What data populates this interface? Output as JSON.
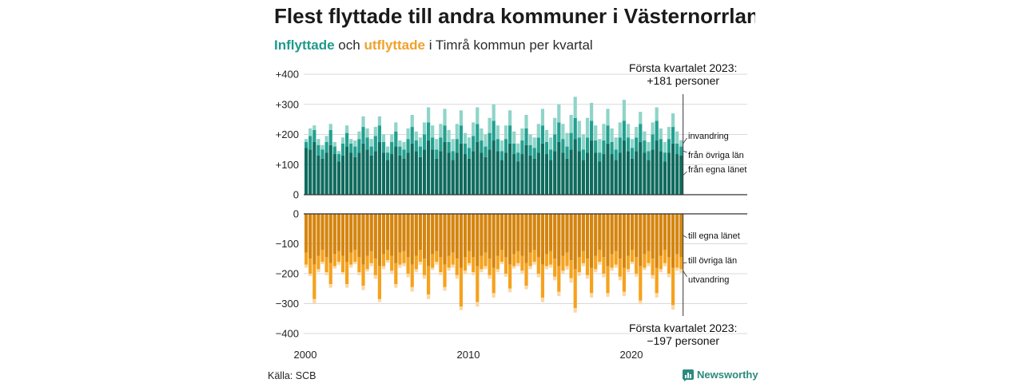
{
  "chart_data": {
    "type": "bar",
    "stacked": true,
    "title": "Flest flyttade till andra kommuner i Västernorrland",
    "subtitle": {
      "inflow_word": "Inflyttade",
      "connector": "och",
      "outflow_word": "utflyttade",
      "rest": "i Timrå kommun per kvartal"
    },
    "grid": true,
    "x": [
      2000,
      2000.25,
      2000.5,
      2000.75,
      2001,
      2001.25,
      2001.5,
      2001.75,
      2002,
      2002.25,
      2002.5,
      2002.75,
      2003,
      2003.25,
      2003.5,
      2003.75,
      2004,
      2004.25,
      2004.5,
      2004.75,
      2005,
      2005.25,
      2005.5,
      2005.75,
      2006,
      2006.25,
      2006.5,
      2006.75,
      2007,
      2007.25,
      2007.5,
      2007.75,
      2008,
      2008.25,
      2008.5,
      2008.75,
      2009,
      2009.25,
      2009.5,
      2009.75,
      2010,
      2010.25,
      2010.5,
      2010.75,
      2011,
      2011.25,
      2011.5,
      2011.75,
      2012,
      2012.25,
      2012.5,
      2012.75,
      2013,
      2013.25,
      2013.5,
      2013.75,
      2014,
      2014.25,
      2014.5,
      2014.75,
      2015,
      2015.25,
      2015.5,
      2015.75,
      2016,
      2016.25,
      2016.5,
      2016.75,
      2017,
      2017.25,
      2017.5,
      2017.75,
      2018,
      2018.25,
      2018.5,
      2018.75,
      2019,
      2019.25,
      2019.5,
      2019.75,
      2020,
      2020.25,
      2020.5,
      2020.75,
      2021,
      2021.25,
      2021.5,
      2021.75,
      2022,
      2022.25,
      2022.5,
      2022.75,
      2023
    ],
    "xticks": {
      "values": [
        2000,
        2010,
        2020
      ],
      "labels": [
        "2000",
        "2010",
        "2020"
      ]
    },
    "panels": [
      {
        "ylim": [
          0,
          400
        ],
        "yticks": {
          "values": [
            0,
            100,
            200,
            300,
            400
          ],
          "labels": [
            "0",
            "+100",
            "+200",
            "+300",
            "+400"
          ]
        },
        "series": [
          {
            "name": "från egna länet",
            "color": "#0f6b5e",
            "values": [
              155,
              150,
              175,
              130,
              120,
              140,
              165,
              135,
              110,
              130,
              160,
              140,
              125,
              140,
              170,
              150,
              130,
              145,
              175,
              140,
              115,
              135,
              160,
              130,
              120,
              140,
              170,
              145,
              125,
              150,
              180,
              150,
              120,
              145,
              175,
              140,
              115,
              140,
              170,
              135,
              120,
              145,
              175,
              140,
              125,
              150,
              180,
              145,
              115,
              140,
              170,
              135,
              110,
              135,
              165,
              130,
              120,
              140,
              170,
              135,
              115,
              145,
              175,
              140,
              120,
              150,
              185,
              145,
              115,
              140,
              180,
              140,
              110,
              135,
              170,
              135,
              115,
              140,
              180,
              145,
              120,
              145,
              175,
              140,
              115,
              150,
              180,
              145,
              110,
              140,
              170,
              135,
              130
            ]
          },
          {
            "name": "från övriga län",
            "color": "#23a090",
            "values": [
              20,
              45,
              40,
              35,
              30,
              35,
              50,
              25,
              25,
              40,
              45,
              30,
              35,
              45,
              55,
              40,
              30,
              50,
              55,
              35,
              25,
              40,
              50,
              30,
              30,
              45,
              55,
              35,
              35,
              50,
              60,
              40,
              30,
              45,
              55,
              35,
              30,
              45,
              60,
              35,
              35,
              50,
              60,
              40,
              35,
              55,
              65,
              40,
              30,
              45,
              60,
              35,
              30,
              45,
              55,
              35,
              35,
              50,
              60,
              40,
              35,
              55,
              65,
              45,
              40,
              55,
              70,
              45,
              35,
              50,
              65,
              40,
              30,
              45,
              60,
              40,
              35,
              50,
              65,
              45,
              35,
              45,
              60,
              40,
              30,
              50,
              65,
              40,
              30,
              45,
              55,
              35,
              30
            ]
          },
          {
            "name": "invandring",
            "color": "#8fd4c9",
            "values": [
              10,
              25,
              15,
              20,
              15,
              20,
              20,
              15,
              10,
              20,
              25,
              15,
              20,
              25,
              35,
              30,
              25,
              30,
              30,
              25,
              20,
              25,
              30,
              20,
              25,
              35,
              40,
              30,
              30,
              40,
              50,
              40,
              35,
              45,
              55,
              40,
              40,
              50,
              50,
              35,
              35,
              45,
              55,
              40,
              40,
              50,
              55,
              45,
              35,
              45,
              50,
              40,
              30,
              40,
              45,
              35,
              35,
              45,
              55,
              40,
              40,
              55,
              60,
              50,
              45,
              60,
              70,
              55,
              50,
              65,
              60,
              50,
              45,
              55,
              55,
              45,
              40,
              50,
              70,
              45,
              30,
              35,
              40,
              30,
              30,
              40,
              45,
              35,
              35,
              40,
              45,
              40,
              21
            ]
          }
        ],
        "annotation": {
          "x": 2023,
          "lines": [
            "Första kvartalet 2023:",
            "+181 personer"
          ]
        }
      },
      {
        "ylim": [
          -400,
          0
        ],
        "yticks": {
          "values": [
            0,
            -100,
            -200,
            -300,
            -400
          ],
          "labels": [
            "0",
            "−100",
            "−200",
            "−300",
            "−400"
          ]
        },
        "series": [
          {
            "name": "till egna länet",
            "color": "#d4850f",
            "values": [
              -130,
              -150,
              -170,
              -140,
              -120,
              -145,
              -165,
              -135,
              -125,
              -140,
              -160,
              -130,
              -120,
              -145,
              -170,
              -140,
              -125,
              -150,
              -175,
              -135,
              -120,
              -140,
              -165,
              -130,
              -125,
              -145,
              -170,
              -140,
              -120,
              -150,
              -175,
              -135,
              -125,
              -145,
              -170,
              -140,
              -130,
              -150,
              -180,
              -145,
              -125,
              -145,
              -175,
              -140,
              -130,
              -150,
              -180,
              -140,
              -120,
              -145,
              -170,
              -135,
              -125,
              -140,
              -165,
              -130,
              -120,
              -145,
              -170,
              -135,
              -125,
              -150,
              -175,
              -140,
              -130,
              -155,
              -185,
              -145,
              -125,
              -150,
              -180,
              -140,
              -120,
              -145,
              -175,
              -135,
              -125,
              -150,
              -180,
              -140,
              -120,
              -145,
              -175,
              -135,
              -125,
              -150,
              -180,
              -140,
              -120,
              -145,
              -180,
              -135,
              -145
            ]
          },
          {
            "name": "till övriga län",
            "color": "#f5a21d",
            "values": [
              -40,
              -50,
              -115,
              -45,
              -40,
              -50,
              -70,
              -40,
              -35,
              -55,
              -75,
              -40,
              -40,
              -50,
              -70,
              -45,
              -40,
              -55,
              -110,
              -40,
              -35,
              -50,
              -70,
              -40,
              -40,
              -55,
              -75,
              -45,
              -40,
              -55,
              -95,
              -45,
              -35,
              -50,
              -75,
              -40,
              -40,
              -55,
              -130,
              -45,
              -40,
              -50,
              -120,
              -45,
              -45,
              -55,
              -85,
              -45,
              -40,
              -55,
              -80,
              -40,
              -40,
              -50,
              -75,
              -45,
              -40,
              -55,
              -110,
              -40,
              -45,
              -60,
              -85,
              -50,
              -45,
              -60,
              -130,
              -50,
              -40,
              -55,
              -85,
              -45,
              -40,
              -55,
              -90,
              -45,
              -45,
              -60,
              -80,
              -45,
              -40,
              -55,
              -115,
              -45,
              -40,
              -55,
              -85,
              -45,
              -45,
              -55,
              -125,
              -45,
              -40
            ]
          },
          {
            "name": "utvandring",
            "color": "#fad8a5",
            "values": [
              -10,
              -8,
              -15,
              -10,
              -8,
              -10,
              -12,
              -8,
              -10,
              -8,
              -12,
              -10,
              -8,
              -10,
              -15,
              -8,
              -10,
              -12,
              -10,
              -10,
              -8,
              -10,
              -12,
              -10,
              -10,
              -12,
              -15,
              -10,
              -10,
              -12,
              -15,
              -8,
              -10,
              -10,
              -12,
              -10,
              -10,
              -12,
              -12,
              -10,
              -8,
              -10,
              -15,
              -10,
              -10,
              -12,
              -15,
              -10,
              -8,
              -10,
              -12,
              -8,
              -10,
              -10,
              -12,
              -10,
              -10,
              -12,
              -15,
              -10,
              -10,
              -12,
              -15,
              -10,
              -12,
              -15,
              -15,
              -12,
              -10,
              -12,
              -15,
              -10,
              -10,
              -12,
              -12,
              -10,
              -10,
              -12,
              -15,
              -10,
              -8,
              -10,
              -12,
              -8,
              -10,
              -12,
              -15,
              -10,
              -10,
              -12,
              -15,
              -10,
              -12
            ]
          }
        ],
        "annotation": {
          "x": 2023,
          "lines": [
            "Första kvartalet 2023:",
            "−197 personer"
          ]
        }
      }
    ]
  },
  "colors": {
    "title": "#1a1a1a",
    "inflow_accent": "#1f9a8a",
    "outflow_accent": "#f0a12a",
    "gridline": "#d9d9d9",
    "axis": "#333333",
    "brand": "#2b8a7e"
  },
  "footer": {
    "source": "Källa: SCB",
    "brand_name": "Newsworthy",
    "brand_icon": "newsworthy-logo-icon"
  }
}
